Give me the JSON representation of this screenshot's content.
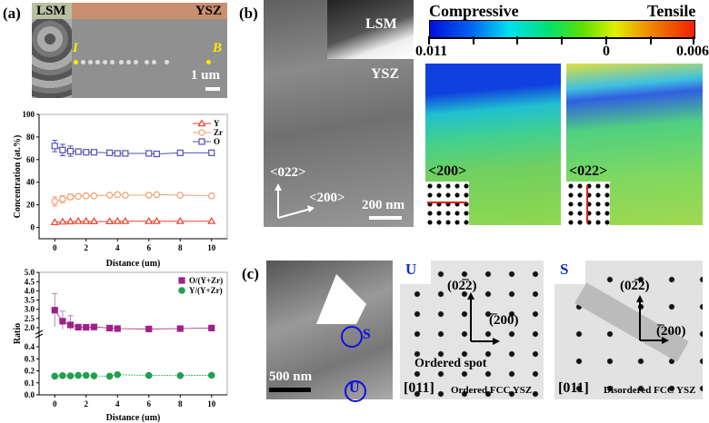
{
  "panels": {
    "a": {
      "label": "(a)",
      "image": {
        "lsm": "LSM",
        "ysz": "YSZ",
        "point_start": "I",
        "point_end": "B",
        "scale": "1 um"
      }
    },
    "b": {
      "label": "(b)",
      "tem": {
        "lsm": "LSM",
        "ysz": "YSZ",
        "dir1": "<022>",
        "dir2": "<200>",
        "scale": "200 nm"
      },
      "colorbar": {
        "left_title": "Compressive",
        "right_title": "Tensile",
        "tick_left": "0.011",
        "tick_mid": "0",
        "tick_right": "0.006"
      },
      "maps": [
        {
          "label": "<200>"
        },
        {
          "label": "<022>"
        }
      ]
    },
    "c": {
      "label": "(c)",
      "tem": {
        "spot_s": "S",
        "spot_u": "U",
        "scale": "500 nm"
      },
      "sad1": {
        "corner": "U",
        "spot1": "(02̅2)",
        "spot2": "(̅200)",
        "note": "Ordered spot",
        "zone": "[011]",
        "caption": "Ordered FCC YSZ"
      },
      "sad2": {
        "corner": "S",
        "spot1": "(02̅2)",
        "spot2": "(̅200)",
        "zone": "[011]",
        "caption": "Disordered FCC YSZ"
      }
    }
  },
  "chart_data": [
    {
      "type": "line",
      "xlabel": "Distance (um)",
      "ylabel": "Concentration (at.%)",
      "xlim": [
        -1,
        11
      ],
      "ylim": [
        -10,
        100
      ],
      "xticks": [
        0,
        2,
        4,
        6,
        8,
        10
      ],
      "yticks": [
        0,
        20,
        40,
        60,
        80,
        100
      ],
      "legend": "top-right",
      "x": [
        0,
        0.5,
        1,
        1.5,
        2,
        2.5,
        3.5,
        4,
        4.5,
        6,
        6.5,
        8,
        10
      ],
      "series": [
        {
          "name": "Y",
          "color": "#e8402a",
          "marker": "triangle",
          "values": [
            4.5,
            5,
            5.2,
            5.5,
            5.5,
            5.3,
            5.3,
            5.5,
            5.5,
            5.5,
            5.5,
            5.5,
            5.5
          ]
        },
        {
          "name": "Zr",
          "color": "#f0a070",
          "marker": "circle",
          "values": [
            23,
            25,
            27,
            27.5,
            28,
            28,
            28.5,
            29,
            28.5,
            28.5,
            29,
            28.5,
            28
          ],
          "errors": [
            4,
            3,
            2.5,
            0,
            0,
            0,
            0,
            0,
            0,
            0,
            0,
            0,
            0
          ]
        },
        {
          "name": "O",
          "color": "#5050b8",
          "marker": "square",
          "values": [
            72,
            68.5,
            67.5,
            67,
            66.5,
            66.5,
            66,
            65.5,
            65.5,
            65.5,
            65,
            66,
            66
          ],
          "errors": [
            5,
            5,
            4.5,
            0,
            0,
            0,
            0,
            0,
            0,
            0,
            0,
            0,
            0
          ]
        }
      ]
    },
    {
      "type": "scatter",
      "xlabel": "Distance (um)",
      "ylabel": "Ratio",
      "xlim": [
        -1,
        11
      ],
      "broken_y_axis": true,
      "yticks_upper": [
        "2.0",
        "2.5",
        "3.0",
        "3.5",
        "4.0",
        "4.5",
        "5.0"
      ],
      "yticks_lower": [
        "0.0",
        "0.1",
        "0.2",
        "0.3",
        "0.4"
      ],
      "xticks": [
        0,
        2,
        4,
        6,
        8,
        10
      ],
      "legend": "top-right",
      "x": [
        0,
        0.5,
        1,
        1.5,
        2,
        2.5,
        3.5,
        4,
        6,
        8,
        10
      ],
      "series": [
        {
          "name": "O/(Y+Zr)",
          "color": "#a0208a",
          "marker": "square",
          "values": [
            2.95,
            2.35,
            2.15,
            2.03,
            2.02,
            2.04,
            1.98,
            1.95,
            1.93,
            1.95,
            1.98
          ],
          "errors": [
            0.9,
            0.55,
            0.5,
            0.1,
            0,
            0,
            0,
            0,
            0,
            0,
            0.15
          ]
        },
        {
          "name": "Y/(Y+Zr)",
          "color": "#20a050",
          "marker": "circle",
          "values": [
            0.155,
            0.16,
            0.158,
            0.162,
            0.162,
            0.158,
            0.155,
            0.168,
            0.162,
            0.16,
            0.163
          ]
        }
      ]
    }
  ]
}
